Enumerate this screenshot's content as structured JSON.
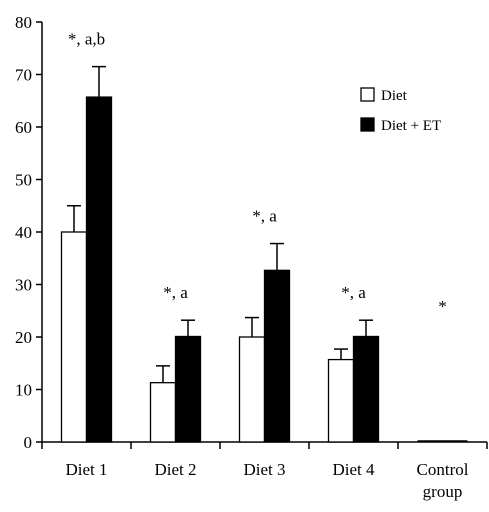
{
  "chart_data": {
    "type": "bar",
    "title": "",
    "xlabel": "",
    "ylabel": "",
    "ylim": [
      0,
      80
    ],
    "yticks": [
      0,
      10,
      20,
      30,
      40,
      50,
      60,
      70,
      80
    ],
    "ytick_labels": [
      "0",
      "10",
      "20",
      "30",
      "40",
      "50",
      "60",
      "70",
      "80"
    ],
    "categories": [
      [
        "Diet 1"
      ],
      [
        "Diet 2"
      ],
      [
        "Diet 3"
      ],
      [
        "Diet 4"
      ],
      [
        "Control",
        "group"
      ]
    ],
    "series": [
      {
        "name": "Diet",
        "fill": "#ffffff",
        "values": [
          40,
          11.3,
          20,
          15.7,
          0
        ],
        "errors": [
          5,
          3.2,
          3.7,
          2,
          0
        ]
      },
      {
        "name": "Diet + ET",
        "fill": "#000000",
        "values": [
          65.7,
          20.1,
          32.7,
          20.1,
          0
        ],
        "errors": [
          5.8,
          3.1,
          5.1,
          3.1,
          0
        ]
      }
    ],
    "annotations": [
      "*, a,b",
      "*, a",
      "*, a",
      "*, a",
      "*"
    ],
    "legend": {
      "position": "top-right"
    },
    "grid": false
  }
}
